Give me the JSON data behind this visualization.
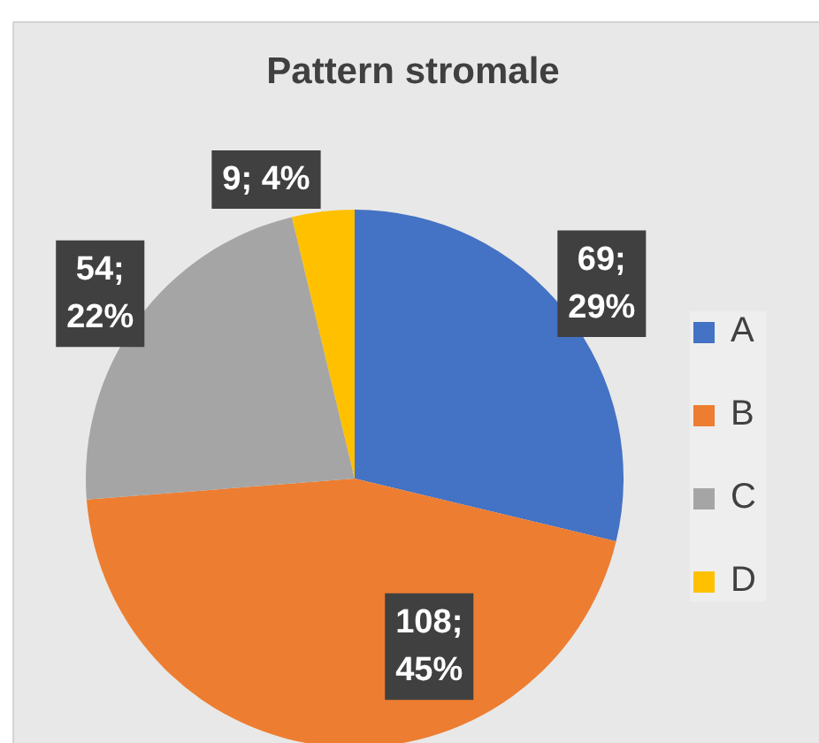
{
  "chart_data": {
    "type": "pie",
    "title": "Pattern stromale",
    "categories": [
      "A",
      "B",
      "C",
      "D"
    ],
    "values": [
      69,
      108,
      54,
      9
    ],
    "colors": [
      "#4472c4",
      "#ed7d31",
      "#a5a5a5",
      "#ffc000"
    ],
    "value_labels": [
      "69; 29%",
      "108; 45%",
      "54; 22%",
      "9; 4%"
    ],
    "legend": "right"
  }
}
